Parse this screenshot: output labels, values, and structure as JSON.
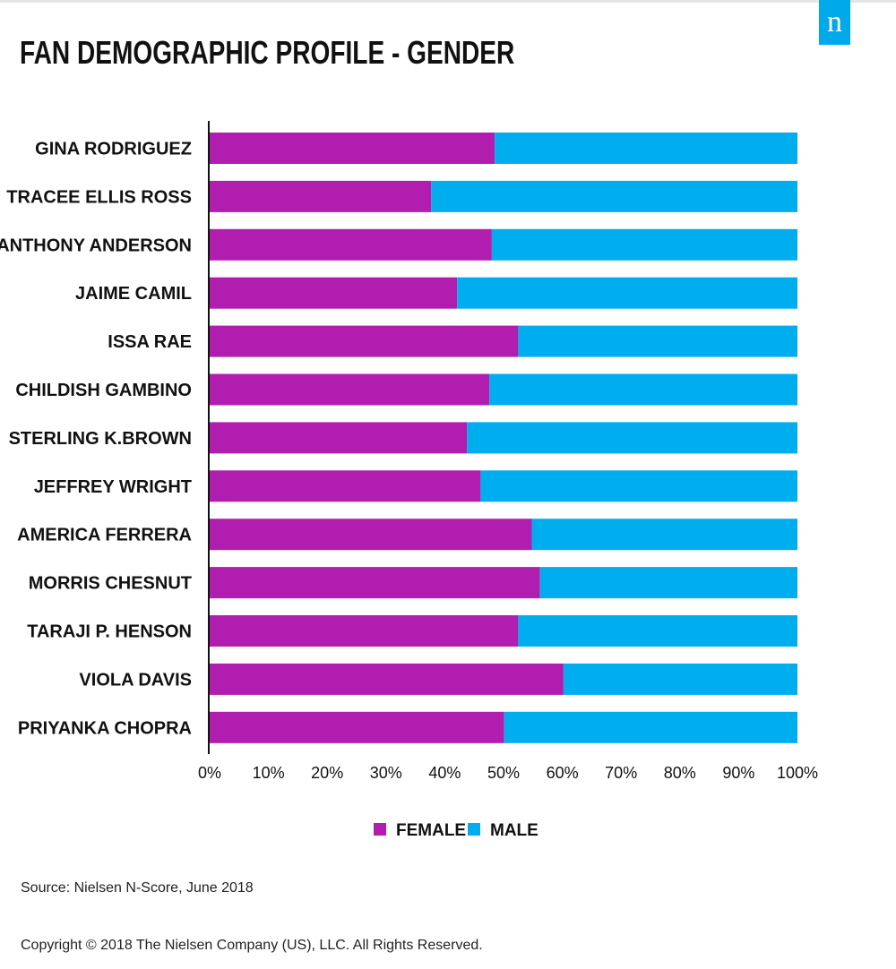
{
  "title": "FAN DEMOGRAPHIC PROFILE - GENDER",
  "logo_letter": "n",
  "colors": {
    "female": "#b11eaf",
    "male": "#00aeef",
    "logo": "#00a9e9"
  },
  "chart_data": {
    "type": "bar",
    "orientation": "horizontal",
    "stacked": true,
    "categories": [
      "GINA RODRIGUEZ",
      "TRACEE ELLIS ROSS",
      "ANTHONY ANDERSON",
      "JAIME CAMIL",
      "ISSA RAE",
      "CHILDISH GAMBINO",
      "STERLING K.BROWN",
      "JEFFREY WRIGHT",
      "AMERICA FERRERA",
      "MORRIS CHESNUT",
      "TARAJI P. HENSON",
      "VIOLA DAVIS",
      "PRIYANKA CHOPRA"
    ],
    "series": [
      {
        "name": "FEMALE",
        "values": [
          48.5,
          37.7,
          48,
          42.1,
          52.5,
          47.6,
          43.8,
          46.1,
          54.8,
          56.2,
          52.5,
          60.2,
          50.1
        ]
      },
      {
        "name": "MALE",
        "values": [
          51.5,
          62.3,
          52,
          57.9,
          47.5,
          52.4,
          56.2,
          53.9,
          45.2,
          43.8,
          47.5,
          39.8,
          49.9
        ]
      }
    ],
    "xlim": [
      0,
      100
    ],
    "xticks": [
      "0%",
      "10%",
      "20%",
      "30%",
      "40%",
      "50%",
      "60%",
      "70%",
      "80%",
      "90%",
      "100%"
    ],
    "legend_position": "bottom-center",
    "grid": false
  },
  "source": "Source: Nielsen N-Score, June 2018",
  "copyright": "Copyright © 2018 The Nielsen Company (US), LLC. All Rights Reserved."
}
